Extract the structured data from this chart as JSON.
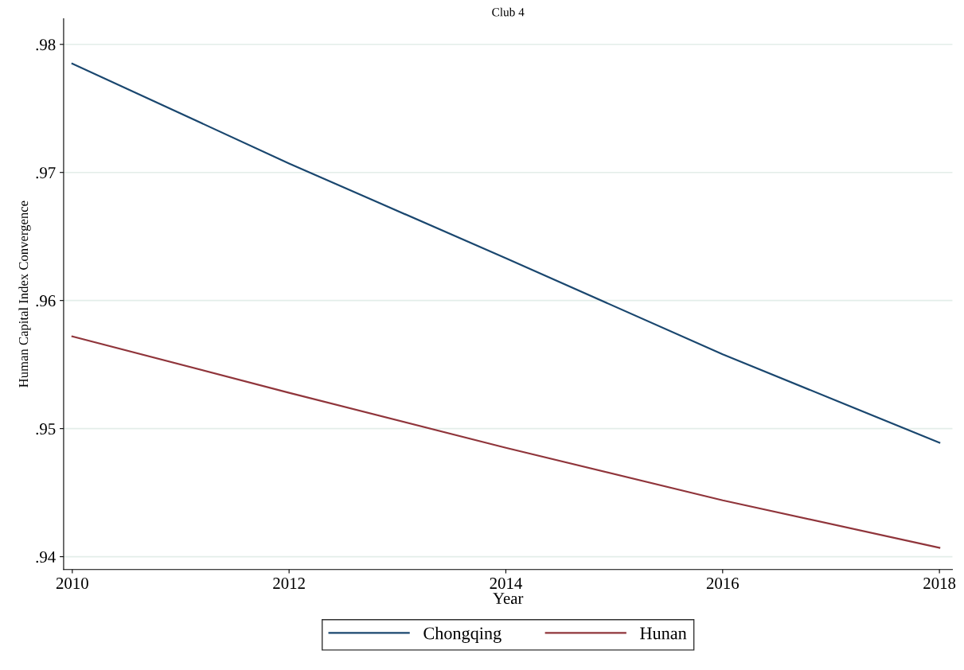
{
  "chart_data": {
    "type": "line",
    "title": "Club 4",
    "xlabel": "Year",
    "ylabel": "Human Capital Index Convergence",
    "x": [
      2010,
      2012,
      2014,
      2016,
      2018
    ],
    "series": [
      {
        "name": "Chongqing",
        "color": "#1a476f",
        "values": [
          0.9785,
          0.9707,
          0.9633,
          0.9558,
          0.9489
        ]
      },
      {
        "name": "Hunan",
        "color": "#90353b",
        "values": [
          0.9572,
          0.9528,
          0.9485,
          0.9444,
          0.9407
        ]
      }
    ],
    "xlim": [
      2009.92,
      2018.12
    ],
    "ylim": [
      0.939,
      0.982
    ],
    "xticks": [
      2010,
      2012,
      2014,
      2016,
      2018
    ],
    "yticks": [
      {
        "value": 0.94,
        "label": ".94"
      },
      {
        "value": 0.95,
        "label": ".95"
      },
      {
        "value": 0.96,
        "label": ".96"
      },
      {
        "value": 0.97,
        "label": ".97"
      },
      {
        "value": 0.98,
        "label": ".98"
      }
    ],
    "grid": "y",
    "legend": "bottom",
    "marker": "none",
    "line_style": "solid"
  }
}
